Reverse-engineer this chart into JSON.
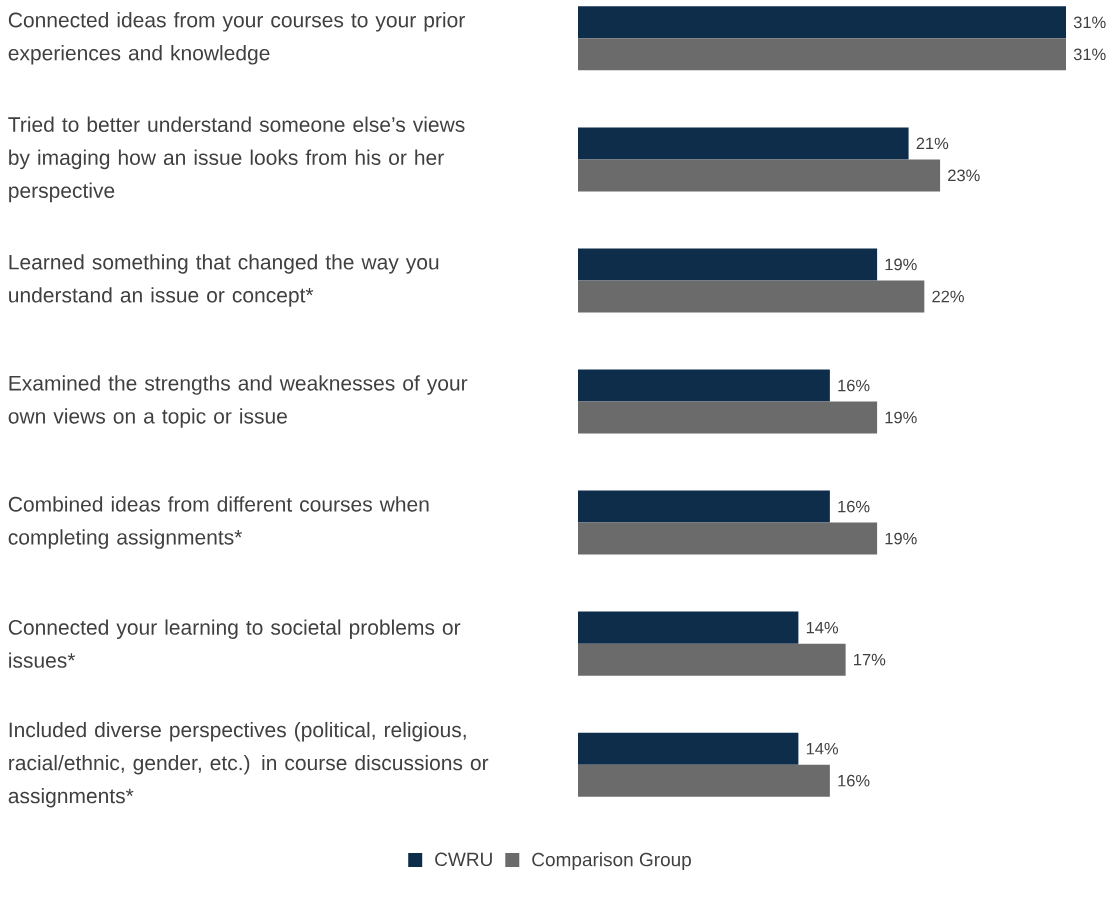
{
  "chart_data": {
    "type": "bar",
    "orientation": "horizontal",
    "legend": "bottom",
    "categories": [
      "Connected ideas from your courses to your prior experiences and knowledge",
      "Tried to better understand someone else’s views by imaging how an issue looks from his or her perspective",
      "Learned something that changed the way you understand an issue or concept*",
      "Examined the strengths and weaknesses of your own views on a topic or issue",
      "Combined ideas from different courses when completing assignments*",
      "Connected your learning to societal problems or issues*",
      "Included diverse perspectives (political, religious, racial/ethnic, gender, etc.) in course discussions or assignments*"
    ],
    "series": [
      {
        "name": "CWRU",
        "color": "#0e2d4b",
        "values": [
          31,
          21,
          19,
          16,
          16,
          14,
          14
        ],
        "value_labels": [
          "31%",
          "21%",
          "19%",
          "16%",
          "16%",
          "14%",
          "14%"
        ]
      },
      {
        "name": "Comparison Group",
        "color": "#6b6b6b",
        "values": [
          31,
          23,
          22,
          19,
          19,
          17,
          16
        ],
        "value_labels": [
          "31%",
          "23%",
          "22%",
          "19%",
          "19%",
          "17%",
          "16%"
        ]
      }
    ]
  }
}
